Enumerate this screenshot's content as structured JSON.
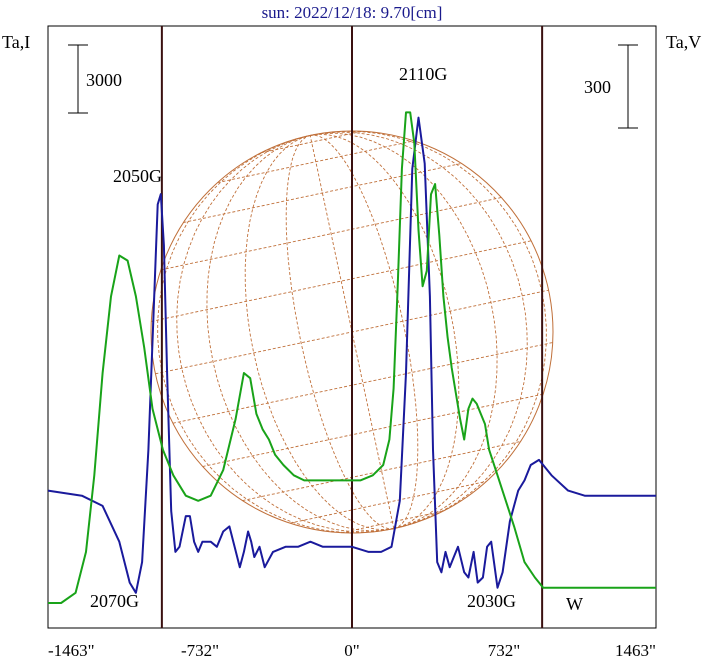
{
  "chart_data": {
    "type": "line",
    "title": "sun: 2022/12/18: 9.70[cm]",
    "left_axis_label": "Ta,I",
    "right_axis_label": "Ta,V",
    "x_ticks": [
      {
        "value": -1463,
        "label": "-1463\""
      },
      {
        "value": -732,
        "label": "-732\""
      },
      {
        "value": 0,
        "label": "0\""
      },
      {
        "value": 732,
        "label": "732\""
      },
      {
        "value": 1463,
        "label": "1463\""
      }
    ],
    "xlim": [
      -1463,
      1463
    ],
    "vertical_markers": [
      -915,
      0,
      915
    ],
    "scale_bars": [
      {
        "side": "left",
        "label": "3000"
      },
      {
        "side": "right",
        "label": "300"
      }
    ],
    "direction_label": "W",
    "annotations": [
      {
        "label": "2050G",
        "x": -915
      },
      {
        "label": "2110G",
        "x": 380
      },
      {
        "label": "2070G",
        "x": -915
      },
      {
        "label": "2030G",
        "x": 790
      }
    ],
    "series": [
      {
        "name": "I",
        "color": "#1a1a9c",
        "points": [
          [
            -1463,
            0.22
          ],
          [
            -1300,
            0.21
          ],
          [
            -1200,
            0.19
          ],
          [
            -1120,
            0.12
          ],
          [
            -1070,
            0.04
          ],
          [
            -1040,
            0.02
          ],
          [
            -1010,
            0.08
          ],
          [
            -980,
            0.3
          ],
          [
            -950,
            0.62
          ],
          [
            -935,
            0.78
          ],
          [
            -920,
            0.8
          ],
          [
            -905,
            0.7
          ],
          [
            -890,
            0.45
          ],
          [
            -870,
            0.18
          ],
          [
            -850,
            0.1
          ],
          [
            -830,
            0.11
          ],
          [
            -800,
            0.17
          ],
          [
            -780,
            0.17
          ],
          [
            -760,
            0.12
          ],
          [
            -740,
            0.1
          ],
          [
            -720,
            0.12
          ],
          [
            -680,
            0.12
          ],
          [
            -650,
            0.11
          ],
          [
            -620,
            0.14
          ],
          [
            -590,
            0.15
          ],
          [
            -565,
            0.11
          ],
          [
            -540,
            0.07
          ],
          [
            -520,
            0.1
          ],
          [
            -500,
            0.14
          ],
          [
            -485,
            0.12
          ],
          [
            -470,
            0.09
          ],
          [
            -445,
            0.11
          ],
          [
            -420,
            0.07
          ],
          [
            -380,
            0.1
          ],
          [
            -320,
            0.11
          ],
          [
            -260,
            0.11
          ],
          [
            -200,
            0.12
          ],
          [
            -140,
            0.11
          ],
          [
            -80,
            0.11
          ],
          [
            0,
            0.11
          ],
          [
            80,
            0.1
          ],
          [
            140,
            0.1
          ],
          [
            190,
            0.11
          ],
          [
            230,
            0.2
          ],
          [
            260,
            0.45
          ],
          [
            290,
            0.85
          ],
          [
            320,
            0.95
          ],
          [
            350,
            0.86
          ],
          [
            375,
            0.6
          ],
          [
            390,
            0.3
          ],
          [
            410,
            0.08
          ],
          [
            430,
            0.06
          ],
          [
            450,
            0.1
          ],
          [
            470,
            0.07
          ],
          [
            490,
            0.09
          ],
          [
            510,
            0.11
          ],
          [
            540,
            0.06
          ],
          [
            560,
            0.05
          ],
          [
            585,
            0.1
          ],
          [
            605,
            0.04
          ],
          [
            630,
            0.05
          ],
          [
            650,
            0.11
          ],
          [
            670,
            0.12
          ],
          [
            700,
            0.03
          ],
          [
            725,
            0.06
          ],
          [
            760,
            0.16
          ],
          [
            800,
            0.22
          ],
          [
            830,
            0.24
          ],
          [
            860,
            0.27
          ],
          [
            900,
            0.28
          ],
          [
            960,
            0.25
          ],
          [
            1040,
            0.22
          ],
          [
            1120,
            0.21
          ],
          [
            1200,
            0.21
          ],
          [
            1300,
            0.21
          ],
          [
            1463,
            0.21
          ]
        ]
      },
      {
        "name": "V",
        "color": "#19a319",
        "points": [
          [
            -1463,
            0.0
          ],
          [
            -1400,
            0.0
          ],
          [
            -1330,
            0.02
          ],
          [
            -1280,
            0.1
          ],
          [
            -1240,
            0.25
          ],
          [
            -1200,
            0.45
          ],
          [
            -1160,
            0.6
          ],
          [
            -1120,
            0.68
          ],
          [
            -1080,
            0.67
          ],
          [
            -1040,
            0.6
          ],
          [
            -1000,
            0.5
          ],
          [
            -960,
            0.38
          ],
          [
            -910,
            0.3
          ],
          [
            -860,
            0.25
          ],
          [
            -800,
            0.21
          ],
          [
            -740,
            0.2
          ],
          [
            -680,
            0.21
          ],
          [
            -620,
            0.26
          ],
          [
            -560,
            0.36
          ],
          [
            -520,
            0.45
          ],
          [
            -490,
            0.44
          ],
          [
            -460,
            0.37
          ],
          [
            -430,
            0.34
          ],
          [
            -400,
            0.32
          ],
          [
            -370,
            0.29
          ],
          [
            -330,
            0.27
          ],
          [
            -280,
            0.25
          ],
          [
            -230,
            0.24
          ],
          [
            -140,
            0.24
          ],
          [
            -60,
            0.24
          ],
          [
            40,
            0.24
          ],
          [
            100,
            0.25
          ],
          [
            150,
            0.27
          ],
          [
            180,
            0.32
          ],
          [
            200,
            0.42
          ],
          [
            220,
            0.62
          ],
          [
            240,
            0.85
          ],
          [
            260,
            0.96
          ],
          [
            280,
            0.96
          ],
          [
            300,
            0.9
          ],
          [
            320,
            0.73
          ],
          [
            340,
            0.62
          ],
          [
            360,
            0.65
          ],
          [
            380,
            0.8
          ],
          [
            400,
            0.82
          ],
          [
            420,
            0.72
          ],
          [
            440,
            0.6
          ],
          [
            460,
            0.52
          ],
          [
            480,
            0.46
          ],
          [
            500,
            0.41
          ],
          [
            520,
            0.36
          ],
          [
            540,
            0.32
          ],
          [
            560,
            0.38
          ],
          [
            580,
            0.4
          ],
          [
            600,
            0.39
          ],
          [
            620,
            0.37
          ],
          [
            640,
            0.35
          ],
          [
            660,
            0.3
          ],
          [
            700,
            0.25
          ],
          [
            740,
            0.2
          ],
          [
            780,
            0.15
          ],
          [
            830,
            0.08
          ],
          [
            880,
            0.05
          ],
          [
            920,
            0.03
          ],
          [
            960,
            0.03
          ],
          [
            1000,
            0.03
          ],
          [
            1040,
            0.03
          ],
          [
            1100,
            0.03
          ],
          [
            1150,
            0.03
          ],
          [
            1200,
            0.03
          ],
          [
            1300,
            0.03
          ],
          [
            1463,
            0.03
          ]
        ]
      }
    ]
  }
}
